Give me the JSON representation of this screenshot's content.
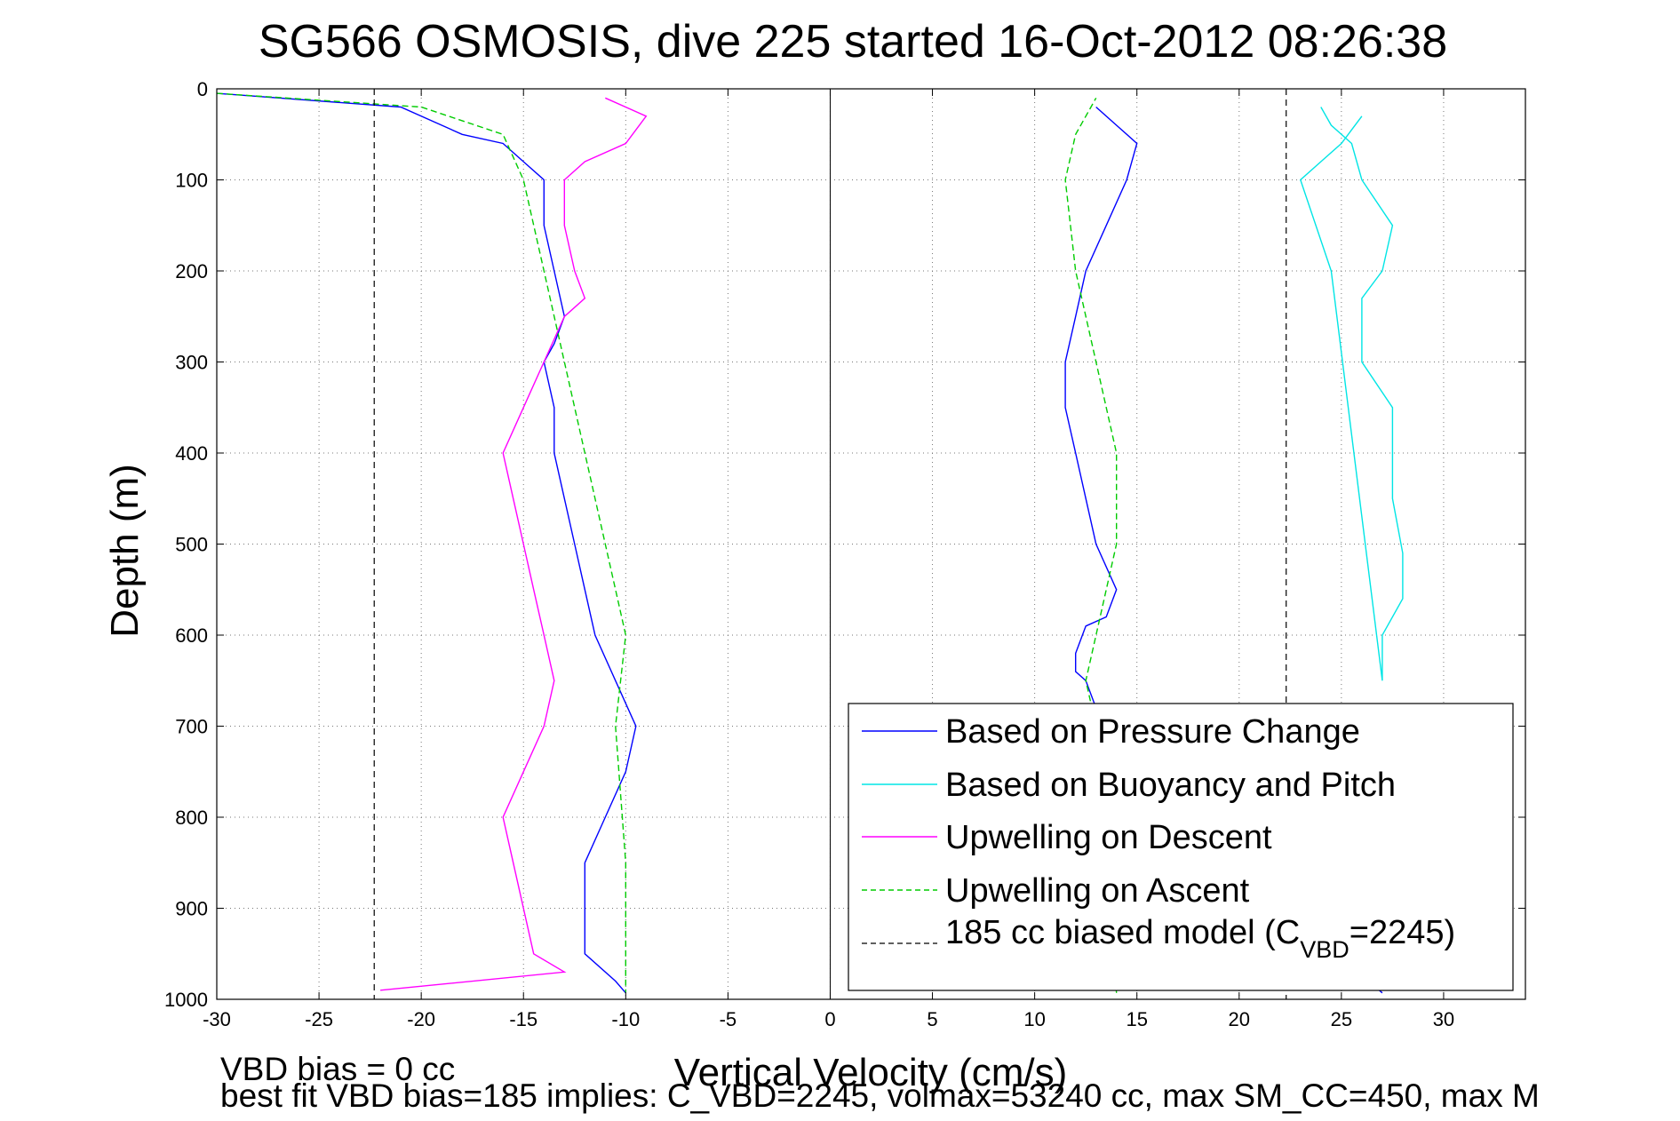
{
  "chart_data": {
    "type": "line",
    "title": "SG566 OSMOSIS, dive 225 started 16-Oct-2012 08:26:38",
    "xlabel": "Vertical Velocity (cm/s)",
    "ylabel": "Depth (m)",
    "xlim": [
      -30,
      34
    ],
    "ylim": [
      1000,
      0
    ],
    "y_reversed": true,
    "grid": true,
    "x_ticks": [
      "-30",
      "-25",
      "-20",
      "-15",
      "-10",
      "-5",
      "0",
      "5",
      "10",
      "15",
      "20",
      "25",
      "30"
    ],
    "y_ticks": [
      "0",
      "100",
      "200",
      "300",
      "400",
      "500",
      "600",
      "700",
      "800",
      "900",
      "1000"
    ],
    "legend_position": "bottom-right",
    "series": [
      {
        "name": "Based on Pressure Change",
        "color": "#0000ff",
        "style": "solid",
        "descent_x": [
          -30,
          -21,
          -19,
          -18,
          -16,
          -15,
          -14,
          -14,
          -13.5,
          -13,
          -13.5,
          -14,
          -13.5,
          -13.5,
          -13,
          -12.5,
          -12,
          -11.5,
          -10.5,
          -9.5,
          -10,
          -11,
          -12,
          -12,
          -12,
          -10.5,
          -10
        ],
        "descent_y": [
          5,
          20,
          40,
          50,
          60,
          80,
          100,
          150,
          200,
          250,
          280,
          300,
          350,
          400,
          450,
          500,
          550,
          600,
          650,
          700,
          750,
          800,
          850,
          900,
          950,
          980,
          993
        ],
        "ascent_x": [
          27,
          12,
          13,
          12.5,
          12,
          12,
          12.5,
          13.5,
          14,
          13,
          12.5,
          12,
          11.5,
          11.5,
          12,
          12.5,
          13.5,
          14.5,
          15,
          14,
          13
        ],
        "ascent_y": [
          993,
          700,
          680,
          650,
          640,
          620,
          590,
          580,
          550,
          500,
          450,
          400,
          350,
          300,
          250,
          200,
          150,
          100,
          60,
          40,
          20
        ]
      },
      {
        "name": "Based on Buoyancy and Pitch",
        "color": "#00e5e5",
        "style": "solid",
        "descent_x": [],
        "descent_y": [],
        "ascent_x": [
          24,
          24.5,
          25.5,
          26,
          27.5,
          27,
          26,
          26,
          27.5,
          27.5,
          28,
          28,
          27,
          27,
          24.5,
          23,
          24,
          25,
          26
        ],
        "ascent_y": [
          20,
          40,
          60,
          100,
          150,
          200,
          230,
          300,
          350,
          450,
          510,
          560,
          600,
          650,
          200,
          100,
          80,
          60,
          30
        ]
      },
      {
        "name": "Upwelling on Descent",
        "color": "#ff00ff",
        "style": "solid",
        "descent_x": [
          -11,
          -9,
          -10,
          -12,
          -13,
          -13,
          -12.5,
          -12,
          -13,
          -15,
          -16,
          -15.5,
          -15,
          -14.5,
          -14,
          -13.5,
          -14,
          -15,
          -16,
          -15.5,
          -15,
          -14.5,
          -13,
          -22
        ],
        "descent_y": [
          10,
          30,
          60,
          80,
          100,
          150,
          200,
          230,
          250,
          350,
          400,
          450,
          500,
          550,
          600,
          650,
          700,
          750,
          800,
          850,
          900,
          950,
          970,
          990
        ],
        "ascent_x": [],
        "ascent_y": []
      },
      {
        "name": "Upwelling on Ascent",
        "color": "#00cc00",
        "style": "dashed",
        "descent_x": [
          -30,
          -20,
          -16,
          -15,
          -14,
          -13,
          -12,
          -11,
          -10,
          -10.5,
          -10,
          -10
        ],
        "descent_y": [
          5,
          20,
          50,
          100,
          200,
          300,
          400,
          500,
          600,
          700,
          850,
          993
        ],
        "ascent_x": [
          14,
          13,
          12.5,
          13,
          13.5,
          14,
          14,
          13.5,
          13,
          12,
          11.5,
          12,
          13
        ],
        "ascent_y": [
          993,
          700,
          650,
          600,
          550,
          500,
          400,
          350,
          300,
          200,
          100,
          50,
          10
        ]
      },
      {
        "name": "185 cc biased model (C",
        "name_sub": "VBD",
        "name_suffix": "=2245)",
        "color": "#000000",
        "style": "dashed",
        "x_values": [
          -22.3,
          22.3
        ]
      }
    ],
    "reference_line_x": 0
  },
  "footer": {
    "line1": "VBD bias = 0 cc",
    "line2": "best fit VBD bias=185 implies: C_VBD=2245, volmax=53240 cc, max SM_CC=450, max M"
  }
}
